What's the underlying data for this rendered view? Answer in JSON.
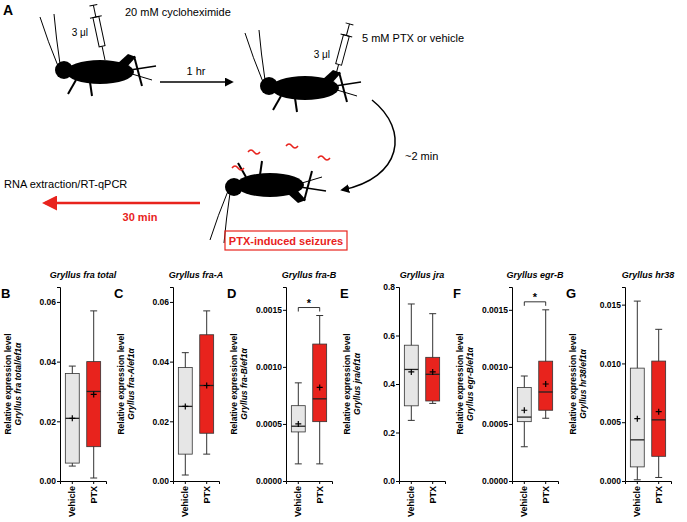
{
  "diagram": {
    "panel": "A",
    "injections": [
      {
        "label": "20 mM cycloheximide",
        "volume": "3 μl"
      },
      {
        "label": "5 mM PTX or vehicle",
        "volume": "3 μl"
      }
    ],
    "arrows": [
      {
        "label": "1 hr"
      },
      {
        "label": "~2 min"
      },
      {
        "label": "30 min"
      }
    ],
    "seizure_label": "PTX-induced seizures",
    "endpoint": "RNA extraction/RT-qPCR"
  },
  "chart_data": [
    {
      "type": "box",
      "panel": "B",
      "title": "Gryllus fra total",
      "ylabel": [
        "Relative expression level",
        "Gryllus fra total/ef1α"
      ],
      "categories": [
        "Vehicle",
        "PTX"
      ],
      "colors": [
        "#e6e6e6",
        "#e8231d"
      ],
      "marker": "plus",
      "min": [
        0.005,
        0.001
      ],
      "q1": [
        0.006,
        0.0115
      ],
      "median": [
        0.021,
        0.03
      ],
      "q3": [
        0.036,
        0.04
      ],
      "max": [
        0.0385,
        0.057
      ],
      "mean": [
        0.021,
        0.029
      ],
      "ylim": [
        0,
        0.065
      ],
      "yticks": [
        {
          "value": 0,
          "label": "0.00"
        },
        0.02,
        0.04,
        0.06
      ]
    },
    {
      "type": "box",
      "panel": "C",
      "title": "Gryllus fra-A",
      "ylabel": [
        "Relative expression level",
        "Gryllus fra-A/ef1α"
      ],
      "categories": [
        "Vehicle",
        "PTX"
      ],
      "colors": [
        "#e6e6e6",
        "#e8231d"
      ],
      "marker": "plus",
      "min": [
        0.002,
        0.009
      ],
      "q1": [
        0.009,
        0.016
      ],
      "median": [
        0.025,
        0.032
      ],
      "q3": [
        0.038,
        0.049
      ],
      "max": [
        0.043,
        0.057
      ],
      "mean": [
        0.025,
        0.032
      ],
      "ylim": [
        0,
        0.065
      ],
      "yticks": [
        {
          "value": 0,
          "label": "0.00"
        },
        0.02,
        0.04,
        0.06
      ]
    },
    {
      "type": "box",
      "panel": "D",
      "title": "Gryllus fra-B",
      "ylabel": [
        "Relative expression level",
        "Gryllus fra-B/ef1α"
      ],
      "categories": [
        "Vehicle",
        "PTX"
      ],
      "colors": [
        "#e6e6e6",
        "#e8231d"
      ],
      "marker": "plus",
      "significance": "*",
      "min": [
        0.00015,
        0.00015
      ],
      "q1": [
        0.00043,
        0.00052
      ],
      "median": [
        0.00048,
        0.00072
      ],
      "q3": [
        0.00066,
        0.0012
      ],
      "max": [
        0.00086,
        0.00145
      ],
      "mean": [
        0.0005,
        0.00082
      ],
      "ylim": [
        0,
        0.0017
      ],
      "yticks": [
        {
          "value": 0,
          "label": "0.0000"
        },
        0.0005,
        {
          "value": 0.001,
          "label": "0.0010"
        },
        0.0015
      ]
    },
    {
      "type": "box",
      "panel": "E",
      "title": "Gryllus jra",
      "ylabel": [
        "Relative expression level",
        "Gryllus jra/ef1α"
      ],
      "categories": [
        "Vehicle",
        "PTX"
      ],
      "colors": [
        "#e6e6e6",
        "#e8231d"
      ],
      "marker": "plus",
      "min": [
        0.25,
        0.32
      ],
      "q1": [
        0.31,
        0.33
      ],
      "median": [
        0.46,
        0.44
      ],
      "q3": [
        0.56,
        0.51
      ],
      "max": [
        0.73,
        0.69
      ],
      "mean": [
        0.45,
        0.45
      ],
      "ylim": [
        0,
        0.8
      ],
      "yticks": [
        {
          "value": 0,
          "label": "0.0"
        },
        0.2,
        0.4,
        0.6,
        0.8
      ]
    },
    {
      "type": "box",
      "panel": "F",
      "title": "Gryllus egr-B",
      "ylabel": [
        "Relative expression level",
        "Gryllus egr-B/ef1α"
      ],
      "categories": [
        "Vehicle",
        "PTX"
      ],
      "colors": [
        "#e6e6e6",
        "#e8231d"
      ],
      "marker": "plus",
      "significance": "*",
      "min": [
        0.0003,
        0.00055
      ],
      "q1": [
        0.00052,
        0.00062
      ],
      "median": [
        0.00056,
        0.00078
      ],
      "q3": [
        0.00082,
        0.00105
      ],
      "max": [
        0.00092,
        0.0015
      ],
      "mean": [
        0.00062,
        0.00085
      ],
      "ylim": [
        0,
        0.0017
      ],
      "yticks": [
        {
          "value": 0,
          "label": "0.0000"
        },
        0.0005,
        {
          "value": 0.001,
          "label": "0.0010"
        },
        0.0015
      ]
    },
    {
      "type": "box",
      "panel": "G",
      "title": "Gryllus hr38",
      "ylabel": [
        "Relative expression level",
        "Gryllus hr38/ef1α"
      ],
      "categories": [
        "Vehicle",
        "PTX"
      ],
      "colors": [
        "#e6e6e6",
        "#e8231d"
      ],
      "marker": "plus",
      "min": [
        0.0001,
        0.0003
      ],
      "q1": [
        0.0012,
        0.0021
      ],
      "median": [
        0.0035,
        0.0052
      ],
      "q3": [
        0.0096,
        0.0102
      ],
      "max": [
        0.0153,
        0.0129
      ],
      "mean": [
        0.0053,
        0.0059
      ],
      "ylim": [
        0,
        0.0165
      ],
      "yticks": [
        {
          "value": 0,
          "label": "0.000"
        },
        0.005,
        {
          "value": 0.01,
          "label": "0.010"
        },
        0.015
      ]
    }
  ]
}
